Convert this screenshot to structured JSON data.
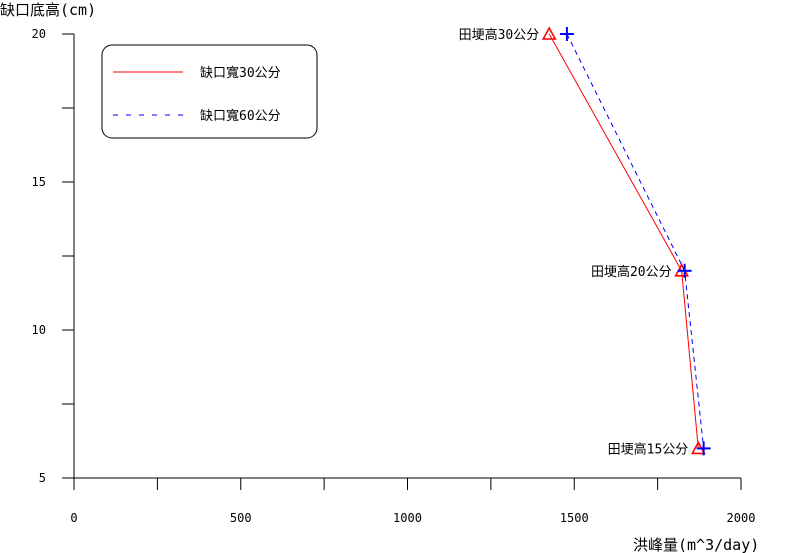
{
  "chart_data": {
    "type": "line",
    "title": "",
    "xlabel": "洪峰量(m^3/day)",
    "ylabel": "缺口底高(cm)",
    "xlim": [
      0,
      2000
    ],
    "ylim": [
      5,
      20
    ],
    "x_ticks": [
      0,
      500,
      1000,
      1500,
      2000
    ],
    "x_tick_labels": [
      "0",
      "500",
      "1000",
      "1500",
      "2000"
    ],
    "y_ticks": [
      5,
      10,
      15,
      20
    ],
    "y_tick_labels": [
      "5",
      "10",
      "15",
      "20"
    ],
    "grid": false,
    "legend_position": "top-left",
    "series": [
      {
        "name": "缺口寬30公分",
        "color": "#ff0000",
        "line_style": "solid",
        "marker": "triangle",
        "x": [
          1425,
          1822,
          1872
        ],
        "y": [
          20,
          12,
          6
        ]
      },
      {
        "name": "缺口寬60公分",
        "color": "#0000ff",
        "line_style": "dashed",
        "marker": "plus",
        "x": [
          1478,
          1831,
          1888
        ],
        "y": [
          20,
          12,
          6
        ]
      }
    ],
    "annotations": [
      {
        "text": "田埂高30公分",
        "x": 1425,
        "y": 20
      },
      {
        "text": "田埂高20公分",
        "x": 1822,
        "y": 12
      },
      {
        "text": "田埂高15公分",
        "x": 1872,
        "y": 6
      }
    ]
  }
}
